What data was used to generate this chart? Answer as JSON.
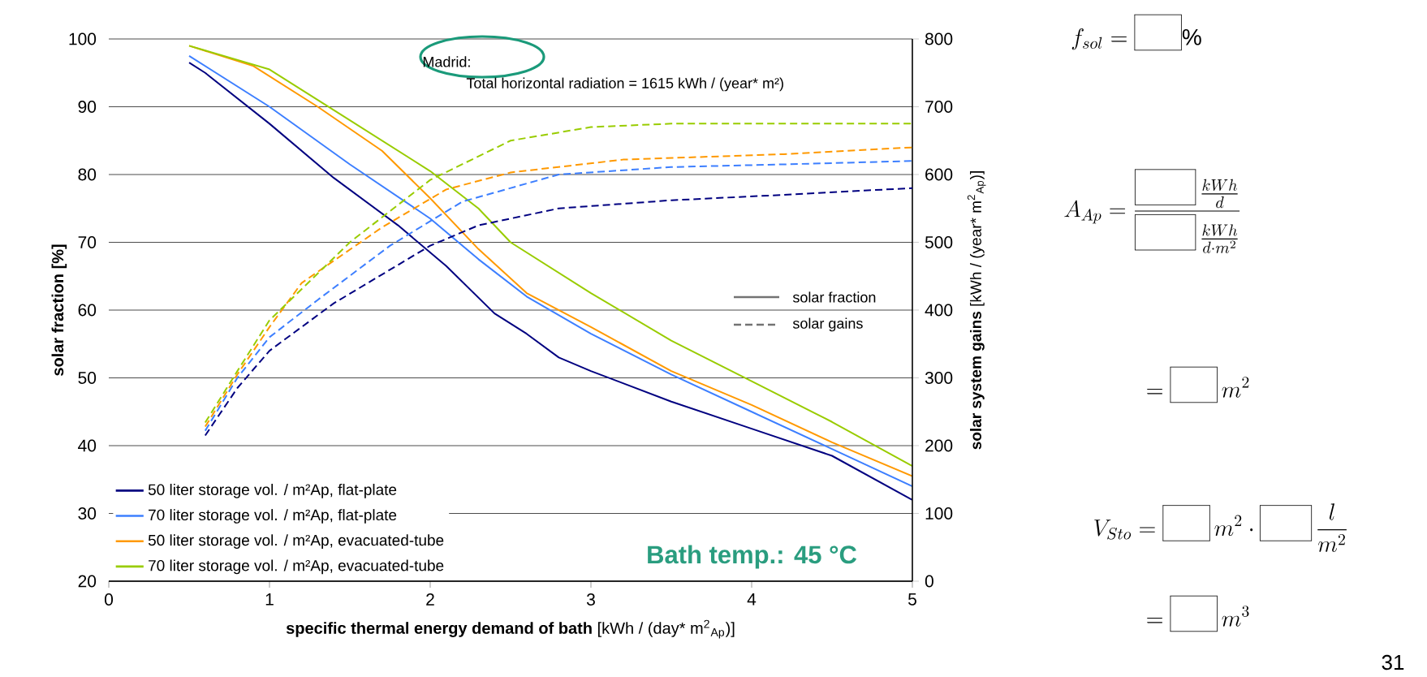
{
  "chart_data": {
    "type": "line",
    "xlabel": "**specific thermal energy demand of bath** [kWh / (day*  m$^{2}$$_{Ap}$)]",
    "ylabel": "solar fraction [%]",
    "y2label": "**solar system gains** [kWh / (year* m$^{2}$$_{Ap}$)]",
    "xlim": [
      0,
      5
    ],
    "xticks": [
      0,
      1,
      2,
      3,
      4,
      5
    ],
    "ylim": [
      20,
      100
    ],
    "yticks": [
      20,
      30,
      40,
      50,
      60,
      70,
      80,
      90,
      100
    ],
    "y2lim": [
      0,
      800
    ],
    "y2ticks": [
      0,
      100,
      200,
      300,
      400,
      500,
      600,
      700,
      800
    ],
    "grid": "y",
    "legend": "bottom left",
    "marker": "none",
    "series": [
      {
        "name": "50 liter storage vol. / m²Ap, flat-plate",
        "color": "#000080",
        "line_style": "solid",
        "x": [
          0.5,
          0.6,
          1.0,
          1.4,
          1.8,
          2.1,
          2.4,
          2.6,
          2.8,
          3.0,
          3.5,
          4.0,
          4.5,
          5.0
        ],
        "values": [
          96.5,
          95,
          87.5,
          79.5,
          72.5,
          66.5,
          59.5,
          56.5,
          53,
          51,
          46.5,
          42.5,
          38.5,
          32
        ]
      },
      {
        "name": "70 liter storage vol. / m²Ap, flat-plate",
        "color": "#3d7fff",
        "line_style": "solid",
        "x": [
          0.5,
          1.0,
          1.5,
          2.0,
          2.3,
          2.6,
          3.0,
          3.5,
          4.0,
          4.5,
          5.0
        ],
        "values": [
          97.5,
          90,
          81.5,
          73.5,
          67.5,
          62,
          56.5,
          50.5,
          45,
          39.5,
          34
        ]
      },
      {
        "name": "50 liter storage vol. / m²Ap, evacuated-tube",
        "color": "#ff9900",
        "line_style": "solid",
        "x": [
          0.5,
          0.9,
          1.3,
          1.7,
          2.0,
          2.3,
          2.6,
          3.0,
          3.5,
          4.0,
          4.5,
          5.0
        ],
        "values": [
          99,
          96,
          90,
          83.5,
          76.5,
          69,
          62.5,
          57.5,
          51,
          46,
          40.5,
          35.5
        ]
      },
      {
        "name": "70 liter storage vol. / m²Ap, evacuated-tube",
        "color": "#99cc00",
        "line_style": "solid",
        "x": [
          0.5,
          1.0,
          1.4,
          2.0,
          2.3,
          2.5,
          3.0,
          3.5,
          4.0,
          4.5,
          5.0
        ],
        "values": [
          99,
          95.5,
          89.5,
          80.5,
          75,
          70,
          62.5,
          55.5,
          49.5,
          43.5,
          37
        ]
      },
      {
        "color": "#000080",
        "line_style": "dashed",
        "axis": "y2",
        "x": [
          0.6,
          0.8,
          1.0,
          1.4,
          2.0,
          2.3,
          2.8,
          3.5,
          4.2,
          5.0
        ],
        "values": [
          215,
          285,
          340,
          410,
          495,
          525,
          550,
          562,
          570,
          580
        ]
      },
      {
        "color": "#3d7fff",
        "line_style": "dashed",
        "axis": "y2",
        "x": [
          0.6,
          0.8,
          1.0,
          1.3,
          1.75,
          2.2,
          2.8,
          3.5,
          4.2,
          5.0
        ],
        "values": [
          222,
          300,
          360,
          415,
          495,
          560,
          600,
          611,
          615,
          620
        ]
      },
      {
        "color": "#ff9900",
        "line_style": "dashed",
        "axis": "y2",
        "x": [
          0.6,
          0.8,
          1.0,
          1.2,
          1.7,
          2.1,
          2.5,
          3.2,
          4.2,
          5.0
        ],
        "values": [
          228,
          305,
          375,
          440,
          522,
          578,
          603,
          622,
          630,
          640
        ]
      },
      {
        "color": "#99cc00",
        "line_style": "dashed",
        "axis": "y2",
        "x": [
          0.6,
          0.8,
          1.0,
          1.5,
          2.0,
          2.5,
          3.0,
          3.5,
          4.2,
          5.0
        ],
        "values": [
          234,
          310,
          385,
          500,
          592,
          650,
          670,
          675,
          675,
          675
        ]
      }
    ],
    "annotations": [
      "Madrid:",
      "Total horizontal radiation = 1615  kWh /  (year* m²)",
      "Bath temp.: 45 °C",
      "solar fraction",
      "solar gains",
      "31",
      "f_{sol} = \\fbox{\\rule{0pt}{1.1em}\\hspace{1.6em}}\\%",
      "A_{Ap} = \\frac{\\fbox{\\rule{0pt}{1.1em}\\hspace{2.2em}}\\,\\frac{kWh}{d}}{\\fbox{\\rule{0pt}{1.1em}\\hspace{2.2em}}\\,\\frac{kWh}{d\\cdot m^{2}}}",
      "= \\fbox{\\rule{0pt}{1.1em}\\hspace{1.6em}}\\, m^{2}",
      "V_{Sto} = \\fbox{\\rule{0pt}{1.1em}\\hspace{1.6em}}\\, m^{2}\\cdot\\fbox{\\rule{0pt}{1.1em}\\hspace{1.8em}}\\,\\frac{l}{m^{2}}",
      "= \\fbox{\\rule{0pt}{1.1em}\\hspace{1.6em}}\\, m^{3}"
    ]
  }
}
